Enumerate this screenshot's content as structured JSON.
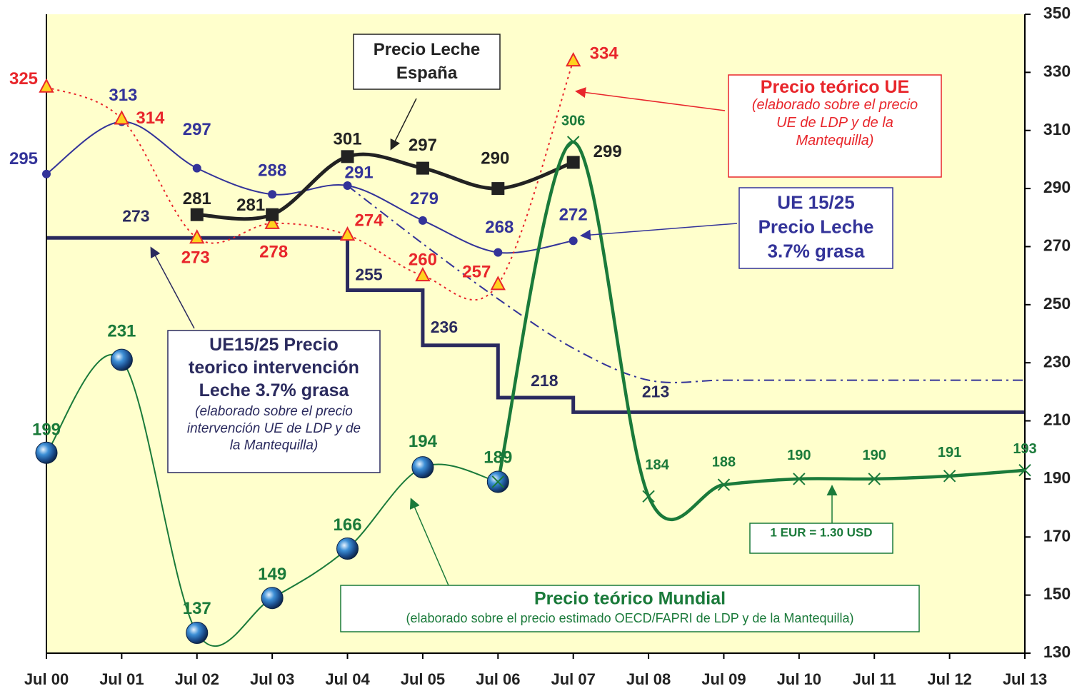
{
  "chart_data": {
    "type": "line",
    "categories": [
      "Jul 00",
      "Jul 01",
      "Jul 02",
      "Jul 03",
      "Jul 04",
      "Jul 05",
      "Jul 06",
      "Jul 07",
      "Jul 08",
      "Jul 09",
      "Jul 10",
      "Jul 11",
      "Jul 12",
      "Jul 13"
    ],
    "ylim": [
      130,
      350
    ],
    "yticks": [
      130,
      150,
      170,
      190,
      210,
      230,
      250,
      270,
      290,
      310,
      330,
      350
    ],
    "series": [
      {
        "color": "#2a2a5e",
        "style": "step",
        "marker": "none",
        "values": [
          273,
          273,
          273,
          273,
          255,
          236,
          218,
          213,
          213,
          213,
          213,
          213,
          213,
          213
        ]
      },
      {
        "color": "#333399",
        "style": "smooth",
        "dash": "dashdot",
        "marker": "none",
        "values": [
          null,
          null,
          null,
          null,
          291,
          271,
          252,
          235,
          224,
          224,
          224,
          224,
          224,
          224
        ]
      },
      {
        "color": "#333399",
        "style": "smooth",
        "marker": "circle",
        "values": [
          295,
          313,
          297,
          288,
          291,
          279,
          268,
          272,
          null,
          null,
          null,
          null,
          null,
          null
        ]
      },
      {
        "color": "#e8262b",
        "style": "smooth",
        "dash": "dot",
        "marker": "triangle",
        "values": [
          325,
          314,
          273,
          278,
          274,
          260,
          257,
          334,
          null,
          null,
          null,
          null,
          null,
          null
        ]
      },
      {
        "color": "#222222",
        "style": "smooth",
        "marker": "square",
        "values": [
          null,
          null,
          281,
          281,
          301,
          297,
          290,
          299,
          null,
          null,
          null,
          null,
          null,
          null
        ]
      },
      {
        "color": "#1a7a3a",
        "style": "smooth",
        "marker": "globe",
        "values": [
          199,
          231,
          137,
          149,
          166,
          194,
          189,
          306,
          184,
          188,
          190,
          190,
          191,
          193
        ]
      }
    ],
    "annotations": [
      {
        "lines": [
          "Precio Leche",
          "España"
        ],
        "color": "#222222"
      },
      {
        "lines": [
          "Precio teórico UE"
        ],
        "note_lines": [
          "(elaborado sobre el precio",
          "UE de LDP y de la",
          "Mantequilla)"
        ],
        "color": "#e8262b"
      },
      {
        "lines": [
          "UE 15/25",
          "Precio Leche",
          "3.7% grasa"
        ],
        "color": "#333399"
      },
      {
        "lines": [
          "UE15/25 Precio",
          "teorico intervención",
          "Leche 3.7% grasa"
        ],
        "note_lines": [
          "(elaborado sobre el precio",
          "intervención UE de LDP y de",
          "la Mantequilla)"
        ],
        "color": "#2a2a5e"
      },
      {
        "lines": [
          "Precio teórico Mundial"
        ],
        "note_lines": [
          "(elaborado sobre el precio estimado OECD/FAPRI de LDP y de la Mantequilla)"
        ],
        "color": "#1a7a3a"
      },
      {
        "lines": [
          "1 EUR = 1.30 USD"
        ],
        "color": "#1a7a3a"
      }
    ]
  }
}
